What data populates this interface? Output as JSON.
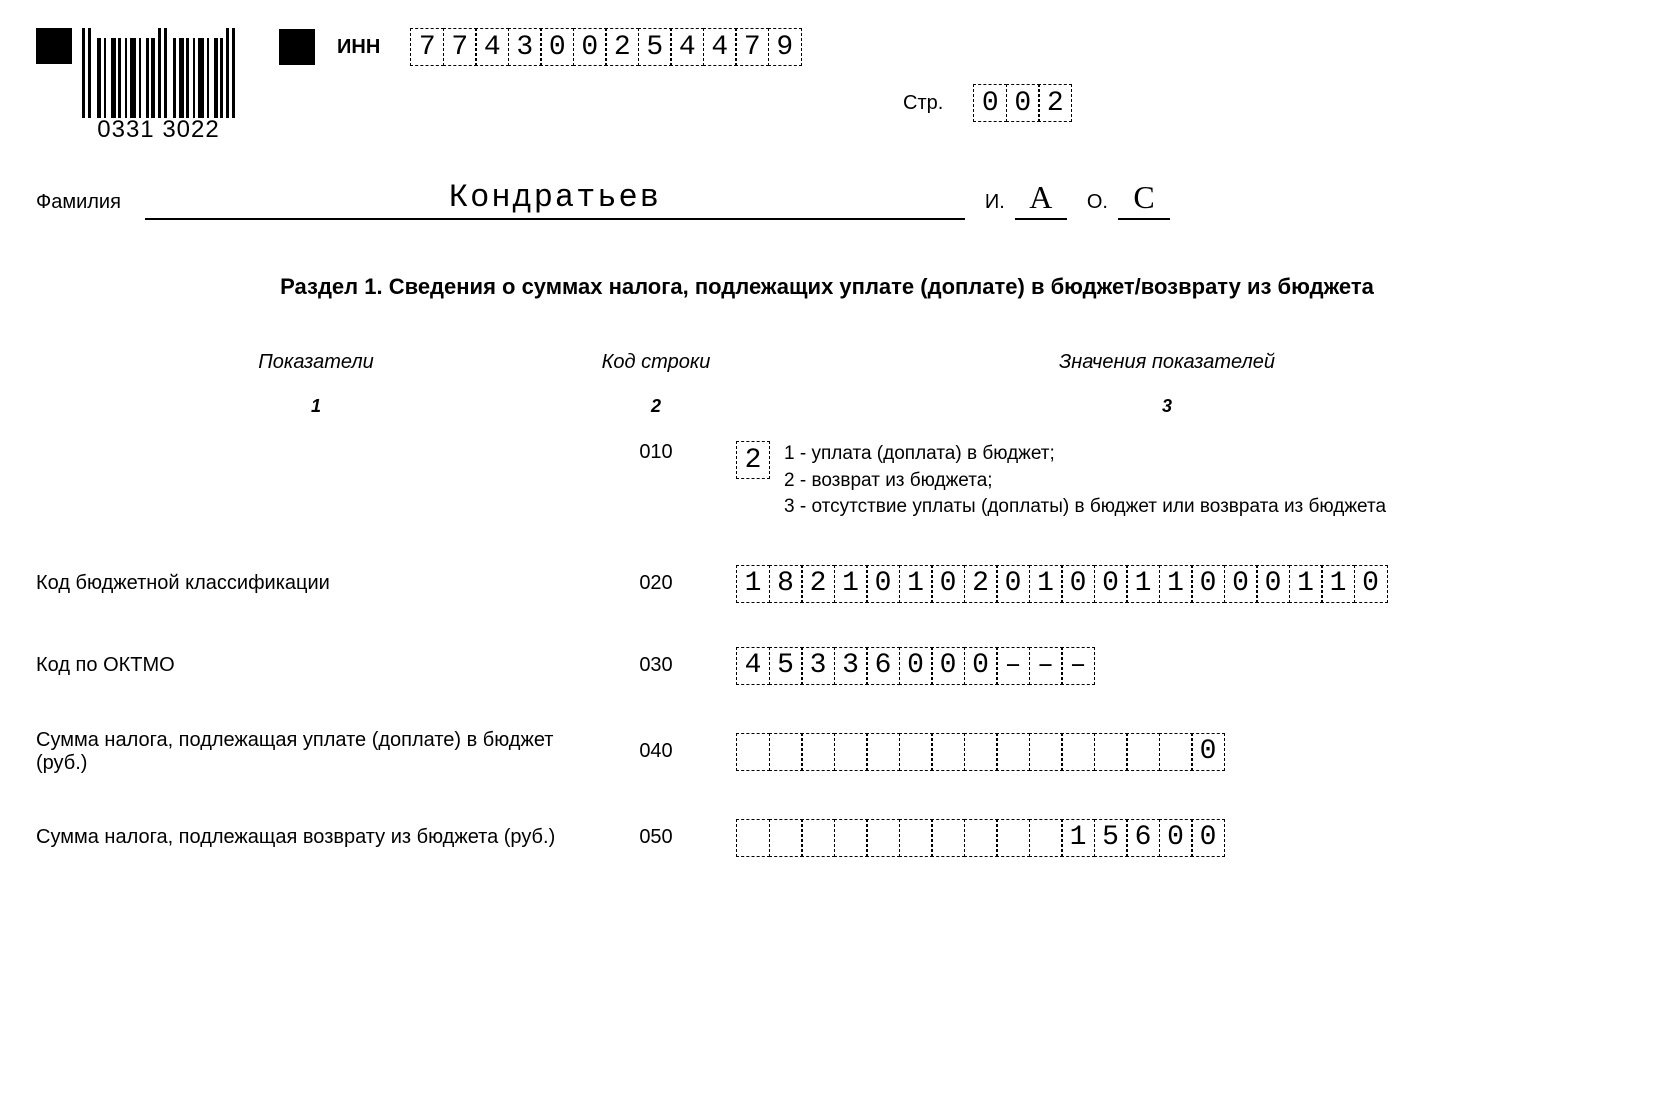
{
  "barcode": {
    "text": "0331 3022"
  },
  "inn": {
    "label": "ИНН",
    "digits": [
      "7",
      "7",
      "4",
      "3",
      "0",
      "0",
      "2",
      "5",
      "4",
      "4",
      "7",
      "9"
    ]
  },
  "page": {
    "label": "Стр.",
    "digits": [
      "0",
      "0",
      "2"
    ]
  },
  "name": {
    "surname_label": "Фамилия",
    "surname": "Кондратьев",
    "i_label": "И.",
    "initial_i": "А",
    "o_label": "О.",
    "initial_o": "С"
  },
  "section_title": "Раздел 1. Сведения о суммах налога, подлежащих уплате (доплате) в бюджет/возврату из бюджета",
  "columns": {
    "c1": "Показатели",
    "c2": "Код строки",
    "c3": "Значения показателей",
    "n1": "1",
    "n2": "2",
    "n3": "3"
  },
  "row010": {
    "code": "010",
    "value": [
      "2"
    ],
    "legend1": "1 - уплата (доплата) в бюджет;",
    "legend2": "2 - возврат из бюджета;",
    "legend3": "3 - отсутствие уплаты (доплаты) в бюджет или возврата из бюджета"
  },
  "row020": {
    "label": "Код бюджетной классификации",
    "code": "020",
    "value": [
      "1",
      "8",
      "2",
      "1",
      "0",
      "1",
      "0",
      "2",
      "0",
      "1",
      "0",
      "0",
      "1",
      "1",
      "0",
      "0",
      "0",
      "1",
      "1",
      "0"
    ]
  },
  "row030": {
    "label": "Код по ОКТМО",
    "code": "030",
    "value": [
      "4",
      "5",
      "3",
      "3",
      "6",
      "0",
      "0",
      "0",
      "–",
      "–",
      "–"
    ]
  },
  "row040": {
    "label": "Сумма налога, подлежащая уплате (доплате) в бюджет (руб.)",
    "code": "040",
    "value": [
      "",
      "",
      "",
      "",
      "",
      "",
      "",
      "",
      "",
      "",
      "",
      "",
      "",
      "",
      "0"
    ]
  },
  "row050": {
    "label": "Сумма налога, подлежащая возврату из бюджета (руб.)",
    "code": "050",
    "value": [
      "",
      "",
      "",
      "",
      "",
      "",
      "",
      "",
      "",
      "",
      "1",
      "5",
      "6",
      "0",
      "0"
    ]
  }
}
